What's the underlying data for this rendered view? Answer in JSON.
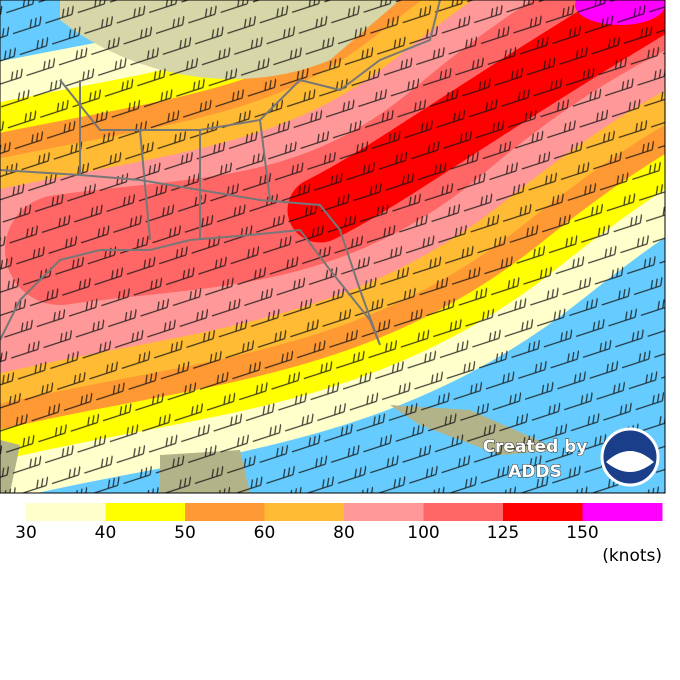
{
  "legend": {
    "entries": [
      {
        "label": "30",
        "color": "#ffffcc"
      },
      {
        "label": "40",
        "color": "#ffff00"
      },
      {
        "label": "50",
        "color": "#ff9933"
      },
      {
        "label": "60",
        "color": "#ffbb33"
      },
      {
        "label": "80",
        "color": "#ff9999"
      },
      {
        "label": "100",
        "color": "#ff6666"
      },
      {
        "label": "125",
        "color": "#ff0000"
      },
      {
        "label": "150",
        "color": "#ff00ff"
      }
    ],
    "unit": "(knots)"
  },
  "credit": {
    "line1": "Created by",
    "line2": "ADDS"
  }
}
